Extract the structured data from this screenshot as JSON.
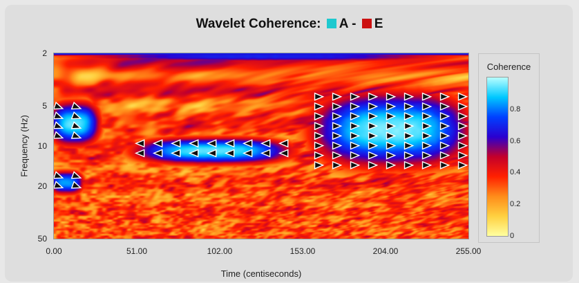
{
  "title": {
    "text": "Wavelet Coherence:",
    "series_a": "A",
    "separator": "-",
    "series_b": "E",
    "series_a_color": "#1ec9cf",
    "series_b_color": "#cc1111"
  },
  "legend": {
    "title": "Coherence",
    "ticks": [
      "0.8",
      "0.6",
      "0.4",
      "0.2",
      "0"
    ]
  },
  "chart_data": {
    "type": "heatmap",
    "title": "Wavelet Coherence: A - E",
    "xlabel": "Time (centiseconds)",
    "ylabel": "Frequency (Hz)",
    "xlim": [
      0,
      255
    ],
    "ylim": [
      2,
      50
    ],
    "yscale": "log",
    "x_tick_labels": [
      "0.00",
      "51.00",
      "102.00",
      "153.00",
      "204.00",
      "255.00"
    ],
    "y_tick_labels": [
      "2",
      "5",
      "10",
      "20",
      "50"
    ],
    "colorbar": {
      "label": "Coherence",
      "range": [
        0,
        1
      ],
      "ticks": [
        0,
        0.2,
        0.4,
        0.6,
        0.8
      ]
    },
    "colormap": [
      "#ffffa0",
      "#ffd040",
      "#ff8c1a",
      "#ff2000",
      "#c4002a",
      "#2a00d0",
      "#0040ff",
      "#00c8ff",
      "#b8ffff"
    ],
    "high_coherence_regions": [
      {
        "x": [
          0,
          25
        ],
        "freq_hz": [
          4.8,
          9.5
        ],
        "coherence": 0.95
      },
      {
        "x": [
          50,
          145
        ],
        "freq_hz": [
          9,
          13
        ],
        "coherence": 0.95
      },
      {
        "x": [
          160,
          255
        ],
        "freq_hz": [
          4,
          14
        ],
        "coherence": 0.97
      },
      {
        "x": [
          0,
          15
        ],
        "freq_hz": [
          16,
          22
        ],
        "coherence": 0.85
      },
      {
        "x": [
          0,
          255
        ],
        "freq_hz": [
          2,
          2.2
        ],
        "coherence": 0.7
      }
    ],
    "phase_arrows_note": "white triangular phase arrows shown within high-coherence regions"
  }
}
